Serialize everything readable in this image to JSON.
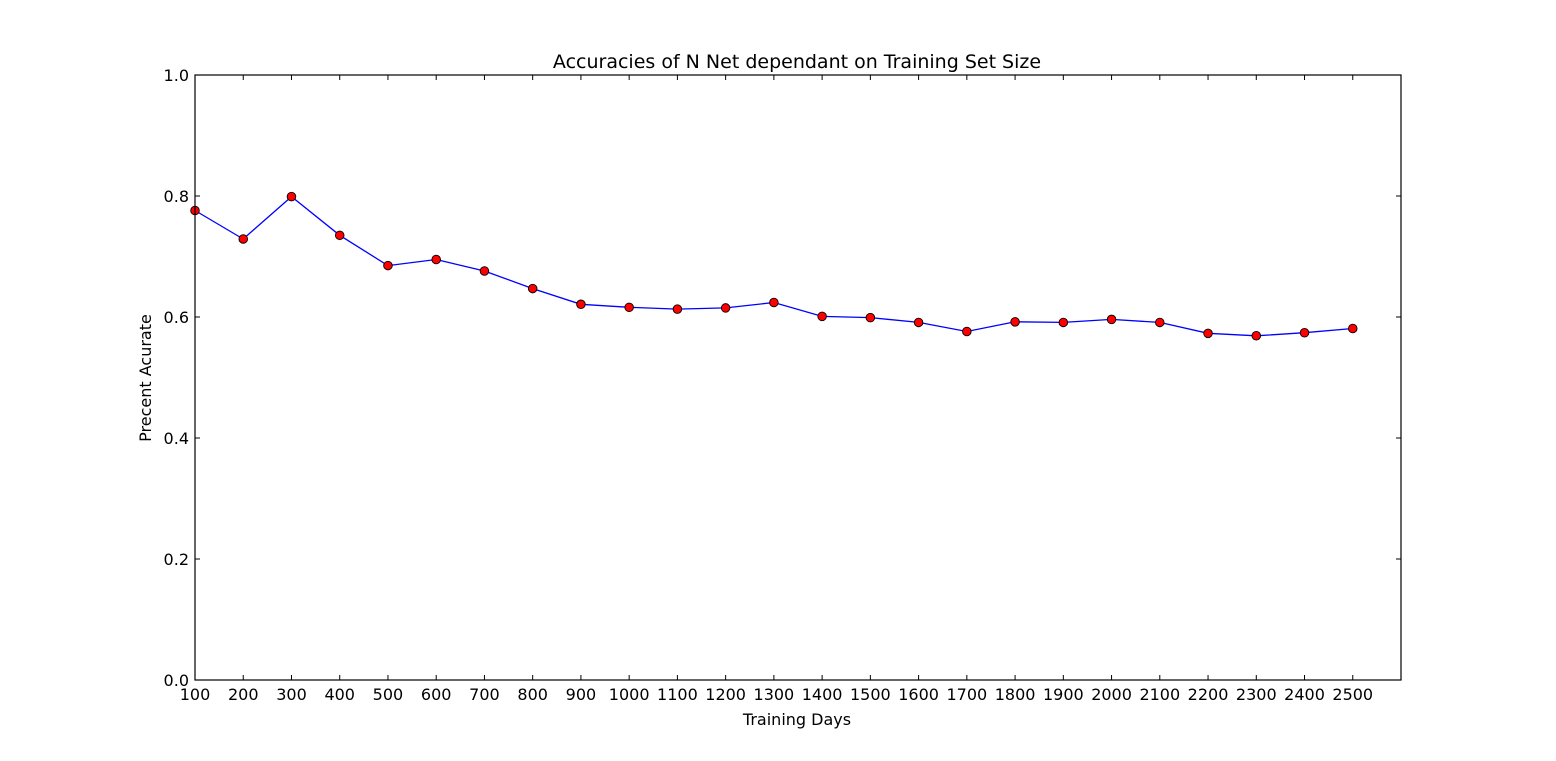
{
  "chart_data": {
    "type": "line",
    "title": "Accuracies of N Net dependant on Training Set Size",
    "xlabel": "Training Days",
    "ylabel": "Precent Acurate",
    "xlim": [
      100,
      2600
    ],
    "ylim": [
      0.0,
      1.0
    ],
    "x_ticks": [
      "100",
      "200",
      "300",
      "400",
      "500",
      "600",
      "700",
      "800",
      "900",
      "1000",
      "1100",
      "1200",
      "1300",
      "1400",
      "1500",
      "1600",
      "1700",
      "1800",
      "1900",
      "2000",
      "2100",
      "2200",
      "2300",
      "2400",
      "2500"
    ],
    "y_ticks": [
      "0.0",
      "0.2",
      "0.4",
      "0.6",
      "0.8",
      "1.0"
    ],
    "grid": false,
    "series": [
      {
        "line_color": "#0000ff",
        "marker_color": "#ff0000",
        "marker": "circle",
        "x": [
          100,
          200,
          300,
          400,
          500,
          600,
          700,
          800,
          900,
          1000,
          1100,
          1200,
          1300,
          1400,
          1500,
          1600,
          1700,
          1800,
          1900,
          2000,
          2100,
          2200,
          2300,
          2400,
          2500
        ],
        "y": [
          0.776,
          0.729,
          0.799,
          0.735,
          0.685,
          0.695,
          0.676,
          0.647,
          0.621,
          0.616,
          0.613,
          0.615,
          0.624,
          0.601,
          0.599,
          0.591,
          0.576,
          0.592,
          0.591,
          0.596,
          0.591,
          0.573,
          0.569,
          0.574,
          0.581
        ]
      }
    ]
  }
}
